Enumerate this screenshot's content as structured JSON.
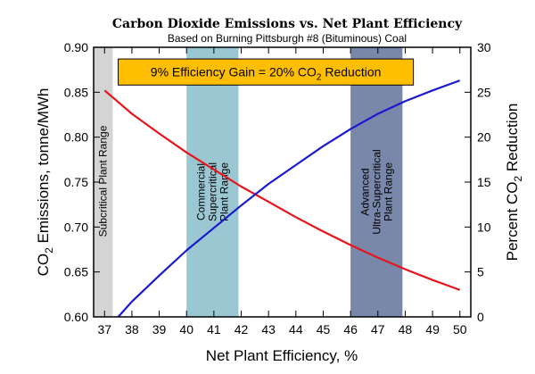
{
  "chart_data": {
    "type": "line",
    "title": "Carbon Dioxide Emissions vs. Net Plant Efficiency",
    "subtitle": "Based on Burning Pittsburgh #8 (Bituminous) Coal",
    "xlabel": "Net Plant Efficiency, %",
    "ylabel_left": {
      "prefix": "CO",
      "sub": "2",
      "suffix": " Emissions, tonne/MWh"
    },
    "ylabel_right": {
      "prefix": "Percent CO",
      "sub": "2",
      "suffix": " Reduction"
    },
    "xlim": [
      36.6,
      50.4
    ],
    "ylim_left": [
      0.6,
      0.9
    ],
    "ylim_right": [
      0,
      30
    ],
    "x_ticks": [
      37,
      38,
      39,
      40,
      41,
      42,
      43,
      44,
      45,
      46,
      47,
      48,
      49,
      50
    ],
    "y_ticks_left": [
      "0.60",
      "0.65",
      "0.70",
      "0.75",
      "0.80",
      "0.85",
      "0.90"
    ],
    "y_ticks_right": [
      0,
      5,
      10,
      15,
      20,
      25,
      30
    ],
    "series": [
      {
        "axis": "left",
        "color": "#e8141c",
        "x": [
          37,
          38,
          39,
          40,
          41,
          42,
          43,
          44,
          45,
          46,
          47,
          48,
          49,
          50
        ],
        "y": [
          0.852,
          0.826,
          0.804,
          0.783,
          0.764,
          0.745,
          0.728,
          0.711,
          0.695,
          0.68,
          0.666,
          0.653,
          0.641,
          0.63
        ]
      },
      {
        "axis": "right",
        "color": "#1a1ad0",
        "x": [
          37.5,
          38,
          39,
          40,
          41,
          42,
          43,
          44,
          45,
          46,
          47,
          48,
          49,
          50
        ],
        "y": [
          0,
          1.7,
          4.6,
          7.4,
          9.9,
          12.4,
          14.8,
          16.9,
          19.0,
          20.9,
          22.6,
          24.0,
          25.2,
          26.3
        ]
      }
    ],
    "bands": [
      {
        "x0": 36.6,
        "x1": 37.3,
        "color": "#d4d4d4",
        "label_lines": [
          "Subcritical Plant Range"
        ]
      },
      {
        "x0": 40.0,
        "x1": 41.9,
        "color": "#9ac7d2",
        "label_lines": [
          "Commercial",
          "Supercritical",
          "Plant Range"
        ]
      },
      {
        "x0": 46.0,
        "x1": 47.9,
        "color": "#7887aa",
        "label_lines": [
          "Advanced",
          "Ultra-Supercritical",
          "Plant Range"
        ]
      }
    ],
    "banner": {
      "prefix": "9% Efficiency Gain = 20% CO",
      "sub": "2",
      "suffix": " Reduction",
      "color": "#ffbf00",
      "x0": 37.5,
      "x1": 48.3,
      "y_top": 0.887,
      "y_bottom": 0.858
    }
  }
}
